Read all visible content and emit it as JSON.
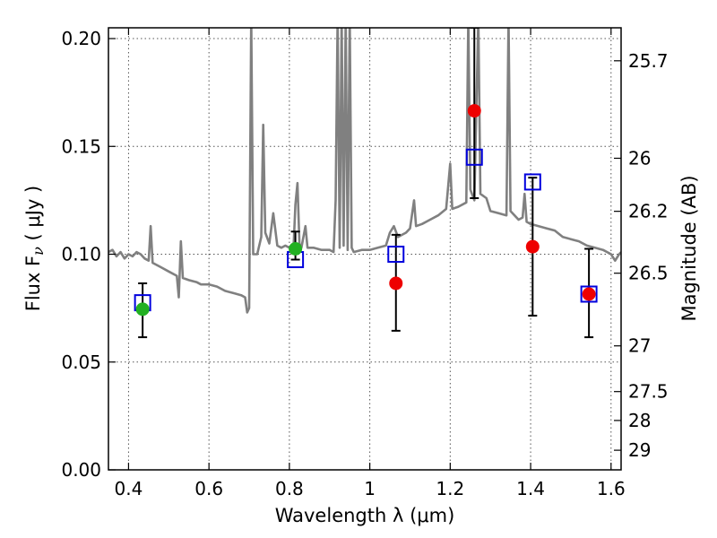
{
  "chart_data": {
    "type": "scatter",
    "title": "",
    "xlabel": "Wavelength  λ (μm)",
    "ylabel": "Flux  F",
    "ylabel_sub": "ν",
    "ylabel_unit": " ( μJy )",
    "y2label": "Magnitude (AB)",
    "xlim": [
      0.35,
      1.625
    ],
    "ylim": [
      0.0,
      0.205
    ],
    "grid": true,
    "x_ticks": [
      {
        "value": 0.4,
        "label": "0.4"
      },
      {
        "value": 0.6,
        "label": "0.6"
      },
      {
        "value": 0.8,
        "label": "0.8"
      },
      {
        "value": 1.0,
        "label": "1"
      },
      {
        "value": 1.2,
        "label": "1.2"
      },
      {
        "value": 1.4,
        "label": "1.4"
      },
      {
        "value": 1.6,
        "label": "1.6"
      }
    ],
    "y_ticks": [
      {
        "value": 0.0,
        "label": "0.00"
      },
      {
        "value": 0.05,
        "label": "0.05"
      },
      {
        "value": 0.1,
        "label": "0.10"
      },
      {
        "value": 0.15,
        "label": "0.15"
      },
      {
        "value": 0.2,
        "label": "0.20"
      }
    ],
    "y2_ticks": [
      {
        "flux": 0.1897,
        "label": "25.7"
      },
      {
        "flux": 0.1445,
        "label": "26"
      },
      {
        "flux": 0.1199,
        "label": "26.2"
      },
      {
        "flux": 0.0912,
        "label": "26.5"
      },
      {
        "flux": 0.0575,
        "label": "27"
      },
      {
        "flux": 0.0363,
        "label": "27.5"
      },
      {
        "flux": 0.0229,
        "label": "28"
      },
      {
        "flux": 0.0091,
        "label": "29"
      }
    ],
    "colors": {
      "spectrum": "#808080",
      "green": "#22b022",
      "red": "#ee0000",
      "box": "#0000dd",
      "errbar": "#000000"
    },
    "series": [
      {
        "name": "model spectrum",
        "kind": "line",
        "points": [
          [
            0.35,
            0.101
          ],
          [
            0.36,
            0.102
          ],
          [
            0.37,
            0.099
          ],
          [
            0.38,
            0.101
          ],
          [
            0.39,
            0.098
          ],
          [
            0.4,
            0.1
          ],
          [
            0.41,
            0.099
          ],
          [
            0.42,
            0.101
          ],
          [
            0.43,
            0.1
          ],
          [
            0.44,
            0.098
          ],
          [
            0.45,
            0.097
          ],
          [
            0.455,
            0.113
          ],
          [
            0.46,
            0.096
          ],
          [
            0.48,
            0.094
          ],
          [
            0.5,
            0.092
          ],
          [
            0.52,
            0.09
          ],
          [
            0.525,
            0.08
          ],
          [
            0.53,
            0.106
          ],
          [
            0.535,
            0.089
          ],
          [
            0.55,
            0.088
          ],
          [
            0.57,
            0.087
          ],
          [
            0.58,
            0.086
          ],
          [
            0.6,
            0.086
          ],
          [
            0.62,
            0.085
          ],
          [
            0.64,
            0.083
          ],
          [
            0.66,
            0.082
          ],
          [
            0.68,
            0.081
          ],
          [
            0.69,
            0.08
          ],
          [
            0.695,
            0.073
          ],
          [
            0.7,
            0.075
          ],
          [
            0.705,
            0.21
          ],
          [
            0.71,
            0.1
          ],
          [
            0.72,
            0.1
          ],
          [
            0.73,
            0.108
          ],
          [
            0.735,
            0.16
          ],
          [
            0.74,
            0.11
          ],
          [
            0.75,
            0.105
          ],
          [
            0.76,
            0.119
          ],
          [
            0.77,
            0.104
          ],
          [
            0.78,
            0.103
          ],
          [
            0.79,
            0.104
          ],
          [
            0.8,
            0.103
          ],
          [
            0.81,
            0.102
          ],
          [
            0.815,
            0.123
          ],
          [
            0.82,
            0.133
          ],
          [
            0.825,
            0.105
          ],
          [
            0.83,
            0.103
          ],
          [
            0.84,
            0.113
          ],
          [
            0.845,
            0.103
          ],
          [
            0.86,
            0.103
          ],
          [
            0.88,
            0.102
          ],
          [
            0.9,
            0.102
          ],
          [
            0.91,
            0.101
          ],
          [
            0.915,
            0.125
          ],
          [
            0.92,
            0.21
          ],
          [
            0.925,
            0.103
          ],
          [
            0.93,
            0.21
          ],
          [
            0.935,
            0.104
          ],
          [
            0.94,
            0.21
          ],
          [
            0.945,
            0.102
          ],
          [
            0.95,
            0.21
          ],
          [
            0.955,
            0.103
          ],
          [
            0.96,
            0.101
          ],
          [
            0.98,
            0.102
          ],
          [
            1.0,
            0.102
          ],
          [
            1.02,
            0.103
          ],
          [
            1.04,
            0.104
          ],
          [
            1.05,
            0.11
          ],
          [
            1.06,
            0.113
          ],
          [
            1.07,
            0.108
          ],
          [
            1.08,
            0.109
          ],
          [
            1.09,
            0.11
          ],
          [
            1.1,
            0.112
          ],
          [
            1.11,
            0.125
          ],
          [
            1.115,
            0.113
          ],
          [
            1.13,
            0.114
          ],
          [
            1.15,
            0.116
          ],
          [
            1.17,
            0.118
          ],
          [
            1.19,
            0.121
          ],
          [
            1.2,
            0.142
          ],
          [
            1.205,
            0.121
          ],
          [
            1.22,
            0.122
          ],
          [
            1.24,
            0.124
          ],
          [
            1.245,
            0.21
          ],
          [
            1.25,
            0.13
          ],
          [
            1.26,
            0.125
          ],
          [
            1.27,
            0.21
          ],
          [
            1.275,
            0.128
          ],
          [
            1.29,
            0.126
          ],
          [
            1.3,
            0.12
          ],
          [
            1.32,
            0.119
          ],
          [
            1.34,
            0.118
          ],
          [
            1.345,
            0.21
          ],
          [
            1.35,
            0.12
          ],
          [
            1.36,
            0.118
          ],
          [
            1.37,
            0.116
          ],
          [
            1.38,
            0.117
          ],
          [
            1.385,
            0.128
          ],
          [
            1.39,
            0.115
          ],
          [
            1.4,
            0.114
          ],
          [
            1.42,
            0.113
          ],
          [
            1.44,
            0.112
          ],
          [
            1.46,
            0.111
          ],
          [
            1.48,
            0.108
          ],
          [
            1.5,
            0.107
          ],
          [
            1.52,
            0.106
          ],
          [
            1.54,
            0.104
          ],
          [
            1.56,
            0.103
          ],
          [
            1.58,
            0.102
          ],
          [
            1.6,
            0.1
          ],
          [
            1.61,
            0.097
          ],
          [
            1.62,
            0.1
          ],
          [
            1.625,
            0.101
          ]
        ]
      },
      {
        "name": "green points",
        "kind": "circle",
        "points": [
          {
            "x": 0.435,
            "y": 0.0745,
            "err": 0
          },
          {
            "x": 0.815,
            "y": 0.1025,
            "err": 0
          }
        ]
      },
      {
        "name": "red points",
        "kind": "circle",
        "points": [
          {
            "x": 1.065,
            "y": 0.0865,
            "err": 0
          },
          {
            "x": 1.26,
            "y": 0.1665,
            "err": 0
          },
          {
            "x": 1.405,
            "y": 0.1035,
            "err": 0
          },
          {
            "x": 1.545,
            "y": 0.0815,
            "err": 0
          }
        ]
      },
      {
        "name": "blue boxes",
        "kind": "square",
        "points": [
          {
            "x": 0.435,
            "y": 0.0775,
            "lo": 0.0615,
            "hi": 0.0865
          },
          {
            "x": 0.815,
            "y": 0.0975,
            "lo": 0.0975,
            "hi": 0.1105
          },
          {
            "x": 1.065,
            "y": 0.1,
            "lo": 0.0645,
            "hi": 0.109
          },
          {
            "x": 1.26,
            "y": 0.145,
            "lo": 0.126,
            "hi": 0.205
          },
          {
            "x": 1.405,
            "y": 0.1335,
            "lo": 0.0715,
            "hi": 0.1355
          },
          {
            "x": 1.545,
            "y": 0.0815,
            "lo": 0.0615,
            "hi": 0.1025
          }
        ]
      }
    ]
  }
}
